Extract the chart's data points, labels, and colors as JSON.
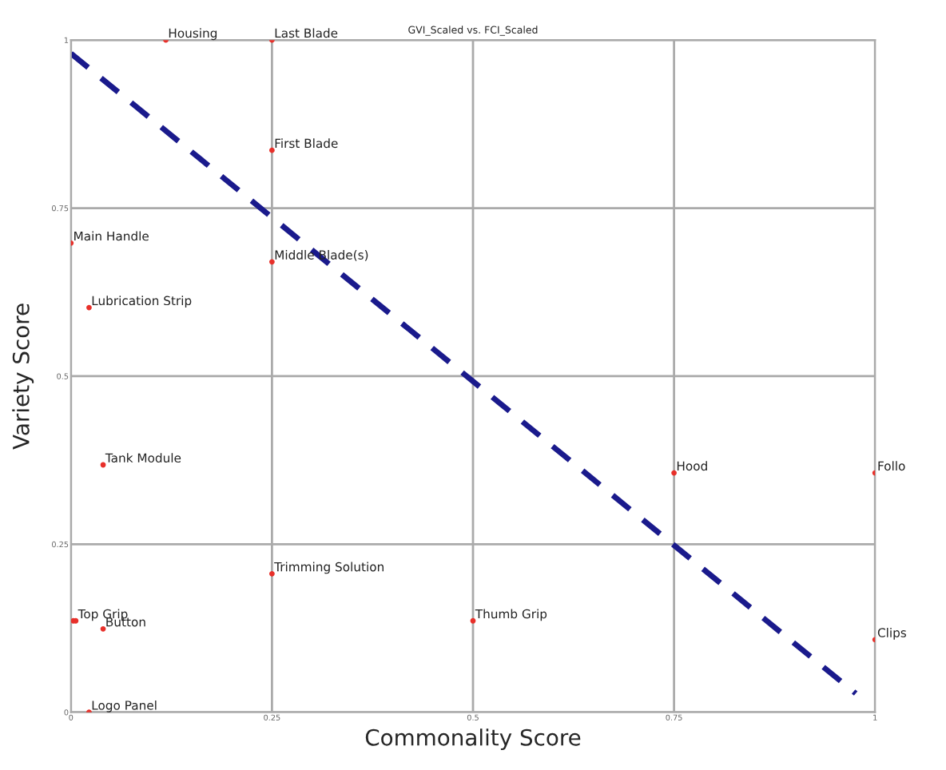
{
  "chart_data": {
    "type": "scatter",
    "title": "GVI_Scaled vs. FCI_Scaled",
    "xlabel": "Commonality Score",
    "ylabel": "Variety Score",
    "xlim": [
      0,
      1
    ],
    "ylim": [
      0,
      1
    ],
    "xticks": [
      0,
      0.25,
      0.5,
      0.75,
      1
    ],
    "yticks": [
      0,
      0.25,
      0.5,
      0.75,
      1
    ],
    "grid": true,
    "marker": "circle",
    "series": [
      {
        "color": "#e8302a",
        "x": [
          0.118,
          0.25,
          0.25,
          0,
          0.25,
          0.0225,
          0.04,
          0.75,
          1,
          0.25,
          0.5,
          1,
          0.003,
          0.006,
          0.04,
          0.0225
        ],
        "values": [
          1,
          1,
          0.836,
          0.698,
          0.67,
          0.602,
          0.368,
          0.356,
          0.356,
          0.206,
          0.136,
          0.108,
          0.136,
          0.136,
          0.124,
          0
        ]
      },
      {
        "type": "line",
        "color": "#1a1a8c",
        "line_style": "dashed",
        "marker": "none",
        "x": [
          0,
          0.976
        ],
        "values": [
          0.98,
          0.028
        ]
      }
    ],
    "annotations": [
      {
        "text": "Housing",
        "x": 0.118,
        "y": 1
      },
      {
        "text": "Last Blade",
        "x": 0.25,
        "y": 1
      },
      {
        "text": "First Blade",
        "x": 0.25,
        "y": 0.836
      },
      {
        "text": "Main Handle",
        "x": 0,
        "y": 0.698
      },
      {
        "text": "Middle Blade(s)",
        "x": 0.25,
        "y": 0.67
      },
      {
        "text": "Lubrication Strip",
        "x": 0.0225,
        "y": 0.602
      },
      {
        "text": "Tank Module",
        "x": 0.04,
        "y": 0.368
      },
      {
        "text": "Hood",
        "x": 0.75,
        "y": 0.356
      },
      {
        "text": "Follo",
        "x": 1,
        "y": 0.356
      },
      {
        "text": "Trimming Solution",
        "x": 0.25,
        "y": 0.206
      },
      {
        "text": "Thumb Grip",
        "x": 0.5,
        "y": 0.136
      },
      {
        "text": "Clips",
        "x": 1,
        "y": 0.108
      },
      {
        "text": "Top Grip",
        "x": 0.006,
        "y": 0.136
      },
      {
        "text": "Button",
        "x": 0.04,
        "y": 0.124
      },
      {
        "text": "Logo Panel",
        "x": 0.0225,
        "y": 0
      }
    ]
  }
}
